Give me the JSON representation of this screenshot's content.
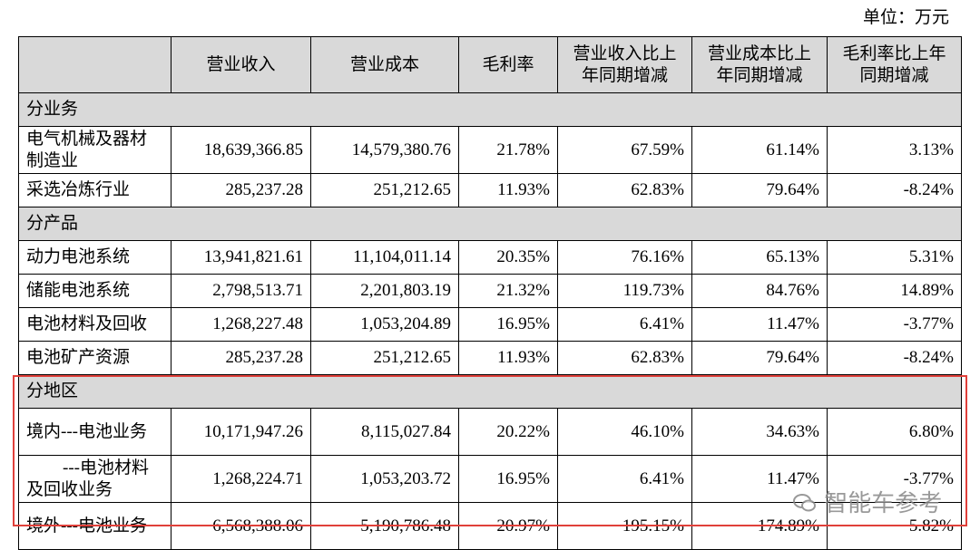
{
  "header": {
    "unit": "单位：万元"
  },
  "table": {
    "columns": [
      "",
      "营业收入",
      "营业成本",
      "毛利率",
      "营业收入比上年同期增减",
      "营业成本比上年同期增减",
      "毛利率比上年同期增减"
    ],
    "rows": [
      {
        "section": "分业务"
      },
      {
        "cells": [
          "电气机械及器材制造业",
          "18,639,366.85",
          "14,579,380.76",
          "21.78%",
          "67.59%",
          "61.14%",
          "3.13%"
        ]
      },
      {
        "cells": [
          "采选冶炼行业",
          "285,237.28",
          "251,212.65",
          "11.93%",
          "62.83%",
          "79.64%",
          "-8.24%"
        ]
      },
      {
        "section": "分产品"
      },
      {
        "cells": [
          "动力电池系统",
          "13,941,821.61",
          "11,104,011.14",
          "20.35%",
          "76.16%",
          "65.13%",
          "5.31%"
        ]
      },
      {
        "cells": [
          "储能电池系统",
          "2,798,513.71",
          "2,201,803.19",
          "21.32%",
          "119.73%",
          "84.76%",
          "14.89%"
        ]
      },
      {
        "cells": [
          "电池材料及回收",
          "1,268,227.48",
          "1,053,204.89",
          "16.95%",
          "6.41%",
          "11.47%",
          "-3.77%"
        ]
      },
      {
        "cells": [
          "电池矿产资源",
          "285,237.28",
          "251,212.65",
          "11.93%",
          "62.83%",
          "79.64%",
          "-8.24%"
        ]
      },
      {
        "section": "分地区"
      },
      {
        "cells": [
          "境内---电池业务",
          "10,171,947.26",
          "8,115,027.84",
          "20.22%",
          "46.10%",
          "34.63%",
          "6.80%"
        ]
      },
      {
        "cells": [
          "---电池材料及回收业务",
          "1,268,224.71",
          "1,053,203.72",
          "16.95%",
          "6.41%",
          "11.47%",
          "-3.77%"
        ]
      },
      {
        "cells": [
          "境外---电池业务",
          "6,568,388.06",
          "5,190,786.48",
          "20.97%",
          "195.15%",
          "174.89%",
          "5.82%"
        ]
      }
    ]
  },
  "watermark": "智能车参考"
}
